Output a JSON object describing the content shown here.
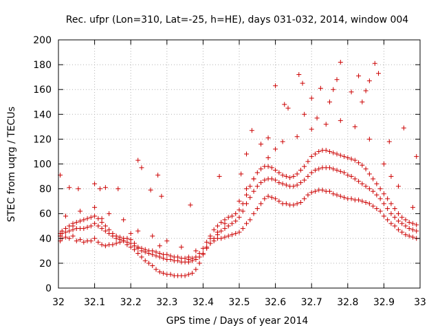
{
  "chart_data": {
    "type": "scatter",
    "title": "Rec. ufpr (Lon=310, Lat=-25, h=HE), days 031-032, 2014, window 004",
    "xlabel": "GPS time / Days of year 2014",
    "ylabel": "STEC from uqrg / TECUs",
    "xlim": [
      32,
      33
    ],
    "ylim": [
      0,
      200
    ],
    "xticks": [
      "32",
      "32.1",
      "32.2",
      "32.3",
      "32.4",
      "32.5",
      "32.6",
      "32.7",
      "32.8",
      "32.9",
      "33"
    ],
    "yticks": [
      "0",
      "20",
      "40",
      "60",
      "80",
      "100",
      "120",
      "140",
      "160",
      "180",
      "200"
    ],
    "grid": true,
    "marker": "+",
    "color": "#cc0000",
    "series": [
      {
        "x": [
          32.005,
          32.01,
          32.02,
          32.03,
          32.04,
          32.05,
          32.06,
          32.07,
          32.08,
          32.09,
          32.1,
          32.11,
          32.12,
          32.13,
          32.14,
          32.15,
          32.16,
          32.17,
          32.18,
          32.19,
          32.2,
          32.21,
          32.22,
          32.23,
          32.24,
          32.25,
          32.26,
          32.27,
          32.28,
          32.29,
          32.3,
          32.31,
          32.32,
          32.33,
          32.34,
          32.35,
          32.36,
          32.37,
          32.38,
          32.39,
          32.4,
          32.41,
          32.42,
          32.43,
          32.44,
          32.45,
          32.46,
          32.47,
          32.48,
          32.49,
          32.5,
          32.51,
          32.52,
          32.53,
          32.54,
          32.55,
          32.56,
          32.57,
          32.58,
          32.59,
          32.6,
          32.61,
          32.62,
          32.63,
          32.64,
          32.65,
          32.66,
          32.67,
          32.68,
          32.69,
          32.7,
          32.71,
          32.72,
          32.73,
          32.74,
          32.75,
          32.76,
          32.77,
          32.78,
          32.79,
          32.8,
          32.81,
          32.82,
          32.83,
          32.84,
          32.85,
          32.86,
          32.87,
          32.88,
          32.89,
          32.9,
          32.91,
          32.92,
          32.93,
          32.94,
          32.95,
          32.96,
          32.97,
          32.98,
          32.99
        ],
        "y": [
          38,
          40,
          41,
          40,
          42,
          38,
          39,
          37,
          38,
          38,
          40,
          37,
          35,
          34,
          35,
          35,
          36,
          37,
          38,
          35,
          33,
          31,
          28,
          25,
          22,
          20,
          18,
          15,
          13,
          12,
          11,
          11,
          10,
          10,
          10,
          10,
          11,
          12,
          15,
          20,
          27,
          33,
          36,
          38,
          40,
          40,
          41,
          42,
          43,
          44,
          45,
          48,
          52,
          55,
          60,
          64,
          68,
          72,
          74,
          73,
          72,
          70,
          68,
          68,
          67,
          67,
          68,
          69,
          72,
          75,
          77,
          78,
          79,
          79,
          78,
          78,
          76,
          75,
          74,
          73,
          72,
          72,
          71,
          71,
          70,
          69,
          68,
          66,
          64,
          62,
          58,
          55,
          52,
          50,
          47,
          45,
          43,
          42,
          41,
          40
        ]
      },
      {
        "x": [
          32.005,
          32.01,
          32.02,
          32.03,
          32.04,
          32.05,
          32.06,
          32.07,
          32.08,
          32.09,
          32.1,
          32.11,
          32.12,
          32.13,
          32.14,
          32.15,
          32.16,
          32.17,
          32.18,
          32.19,
          32.2,
          32.21,
          32.22,
          32.23,
          32.24,
          32.25,
          32.26,
          32.27,
          32.28,
          32.29,
          32.3,
          32.31,
          32.32,
          32.33,
          32.34,
          32.35,
          32.36,
          32.37,
          32.38,
          32.39,
          32.4,
          32.41,
          32.42,
          32.43,
          32.44,
          32.45,
          32.46,
          32.47,
          32.48,
          32.49,
          32.5,
          32.51,
          32.52,
          32.53,
          32.54,
          32.55,
          32.56,
          32.57,
          32.58,
          32.59,
          32.6,
          32.61,
          32.62,
          32.63,
          32.64,
          32.65,
          32.66,
          32.67,
          32.68,
          32.69,
          32.7,
          32.71,
          32.72,
          32.73,
          32.74,
          32.75,
          32.76,
          32.77,
          32.78,
          32.79,
          32.8,
          32.81,
          32.82,
          32.83,
          32.84,
          32.85,
          32.86,
          32.87,
          32.88,
          32.89,
          32.9,
          32.91,
          32.92,
          32.93,
          32.94,
          32.95,
          32.96,
          32.97,
          32.98,
          32.99
        ],
        "y": [
          42,
          44,
          45,
          46,
          47,
          48,
          48,
          48,
          49,
          50,
          52,
          50,
          48,
          46,
          44,
          42,
          40,
          39,
          38,
          37,
          36,
          34,
          32,
          30,
          29,
          28,
          27,
          26,
          25,
          24,
          23,
          23,
          22,
          22,
          21,
          21,
          21,
          22,
          23,
          25,
          28,
          32,
          36,
          40,
          43,
          46,
          48,
          50,
          52,
          54,
          57,
          62,
          68,
          73,
          78,
          82,
          85,
          87,
          88,
          88,
          87,
          85,
          84,
          83,
          82,
          82,
          83,
          85,
          87,
          90,
          93,
          95,
          96,
          97,
          97,
          97,
          96,
          95,
          94,
          93,
          91,
          90,
          88,
          86,
          84,
          82,
          80,
          78,
          75,
          72,
          68,
          64,
          60,
          57,
          54,
          52,
          50,
          48,
          47,
          46
        ]
      },
      {
        "x": [
          32.005,
          32.01,
          32.02,
          32.03,
          32.04,
          32.05,
          32.06,
          32.07,
          32.08,
          32.09,
          32.1,
          32.11,
          32.12,
          32.13,
          32.14,
          32.15,
          32.16,
          32.17,
          32.18,
          32.19,
          32.2,
          32.21,
          32.22,
          32.23,
          32.24,
          32.25,
          32.26,
          32.27,
          32.28,
          32.29,
          32.3,
          32.31,
          32.32,
          32.33,
          32.34,
          32.35,
          32.36,
          32.37,
          32.38,
          32.39,
          32.4,
          32.41,
          32.42,
          32.43,
          32.44,
          32.45,
          32.46,
          32.47,
          32.48,
          32.49,
          32.5,
          32.51,
          32.52,
          32.53,
          32.54,
          32.55,
          32.56,
          32.57,
          32.58,
          32.59,
          32.6,
          32.61,
          32.62,
          32.63,
          32.64,
          32.65,
          32.66,
          32.67,
          32.68,
          32.69,
          32.7,
          32.71,
          32.72,
          32.73,
          32.74,
          32.75,
          32.76,
          32.77,
          32.78,
          32.79,
          32.8,
          32.81,
          32.82,
          32.83,
          32.84,
          32.85,
          32.86,
          32.87,
          32.88,
          32.89,
          32.9,
          32.91,
          32.92,
          32.93,
          32.94,
          32.95,
          32.96,
          32.97,
          32.98,
          32.99
        ],
        "y": [
          44,
          46,
          48,
          50,
          52,
          53,
          54,
          55,
          56,
          57,
          58,
          56,
          53,
          50,
          47,
          44,
          42,
          41,
          40,
          40,
          39,
          36,
          33,
          32,
          31,
          30,
          30,
          29,
          28,
          27,
          27,
          26,
          25,
          25,
          24,
          24,
          23,
          24,
          25,
          28,
          32,
          37,
          42,
          47,
          50,
          53,
          55,
          57,
          58,
          60,
          63,
          68,
          75,
          82,
          88,
          93,
          96,
          98,
          98,
          97,
          95,
          93,
          91,
          90,
          89,
          90,
          92,
          95,
          98,
          102,
          106,
          108,
          110,
          111,
          111,
          110,
          109,
          108,
          107,
          106,
          105,
          104,
          103,
          101,
          99,
          96,
          92,
          88,
          84,
          80,
          76,
          72,
          68,
          64,
          60,
          57,
          55,
          53,
          52,
          51
        ]
      },
      {
        "x": [
          32.02,
          32.06,
          32.1,
          32.14,
          32.18,
          32.22,
          32.26,
          32.3,
          32.34,
          32.38,
          32.42,
          32.46,
          32.5,
          32.54,
          32.58,
          32.62,
          32.66,
          32.7,
          32.74,
          32.78,
          32.82,
          32.86,
          32.9,
          32.94,
          32.98
        ],
        "y": [
          58,
          62,
          65,
          60,
          55,
          46,
          42,
          38,
          33,
          30,
          40,
          52,
          70,
          88,
          105,
          118,
          122,
          128,
          132,
          135,
          130,
          120,
          100,
          82,
          65
        ]
      },
      {
        "x": [
          32.04,
          32.12,
          32.2,
          32.28,
          32.36,
          32.44,
          32.52,
          32.6,
          32.68,
          32.76,
          32.84,
          32.92
        ],
        "y": [
          50,
          56,
          44,
          34,
          25,
          45,
          80,
          112,
          140,
          160,
          150,
          90
        ]
      },
      {
        "x": [
          32.005,
          32.03,
          32.055,
          32.1,
          32.115,
          32.13,
          32.165,
          32.22,
          32.23,
          32.255,
          32.275,
          32.285,
          32.365,
          32.445,
          32.505,
          32.52,
          32.535,
          32.56,
          32.58,
          32.6,
          32.625,
          32.635,
          32.665,
          32.675,
          32.7,
          32.715,
          32.725,
          32.75,
          32.77,
          32.78,
          32.81,
          32.83,
          32.85,
          32.86,
          32.875,
          32.885,
          32.915,
          32.955,
          32.99
        ],
        "y": [
          91,
          81,
          80,
          84,
          80,
          81,
          80,
          103,
          97,
          79,
          91,
          74,
          67,
          90,
          92,
          108,
          127,
          116,
          121,
          163,
          148,
          145,
          172,
          165,
          153,
          137,
          161,
          150,
          168,
          182,
          158,
          171,
          159,
          167,
          181,
          173,
          118,
          129,
          106
        ]
      }
    ]
  }
}
